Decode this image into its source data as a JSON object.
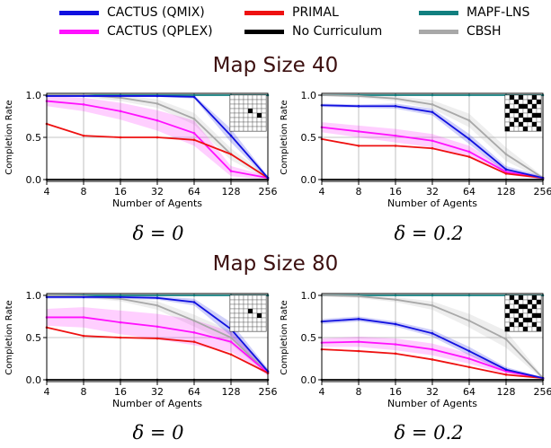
{
  "legend": [
    {
      "label": "CACTUS (QMIX)",
      "color": "#1010e0"
    },
    {
      "label": "PRIMAL",
      "color": "#ee1111"
    },
    {
      "label": "MAPF-LNS",
      "color": "#117f7f"
    },
    {
      "label": "CACTUS (QPLEX)",
      "color": "#ff10ff"
    },
    {
      "label": "No Curriculum",
      "color": "#000000"
    },
    {
      "label": "CBSH",
      "color": "#a8a8a8"
    }
  ],
  "sections": [
    {
      "title": "Map Size 40"
    },
    {
      "title": "Map Size 80"
    }
  ],
  "chart_data": [
    {
      "type": "line",
      "section": "Map Size 40",
      "caption": "δ = 0",
      "xlabel": "Number of Agents",
      "ylabel": "Completion Rate",
      "x": [
        4,
        8,
        16,
        32,
        64,
        128,
        256
      ],
      "x_scale": "log2",
      "xticks": [
        "4",
        "8",
        "16",
        "32",
        "64",
        "128",
        "256"
      ],
      "yticks": [
        "0.0",
        "0.5",
        "1.0"
      ],
      "ylim": [
        0,
        1
      ],
      "grid": true,
      "series": [
        {
          "name": "MAPF-LNS",
          "values": [
            1.0,
            1.0,
            1.0,
            1.0,
            1.0,
            1.0,
            1.0
          ]
        },
        {
          "name": "No Curriculum",
          "values": [
            0.0,
            0.0,
            0.0,
            0.0,
            0.0,
            0.0,
            0.0
          ]
        },
        {
          "name": "CBSH",
          "values": [
            1.0,
            1.0,
            0.97,
            0.9,
            0.72,
            0.3,
            0.02
          ],
          "band": [
            0.02,
            0.02,
            0.04,
            0.05,
            0.07,
            0.07,
            0.02
          ]
        },
        {
          "name": "CACTUS (QPLEX)",
          "values": [
            0.93,
            0.89,
            0.81,
            0.7,
            0.55,
            0.1,
            0.02
          ],
          "band": [
            0.06,
            0.08,
            0.1,
            0.12,
            0.15,
            0.06,
            0.02
          ]
        },
        {
          "name": "PRIMAL",
          "values": [
            0.66,
            0.52,
            0.5,
            0.5,
            0.47,
            0.3,
            0.02
          ]
        },
        {
          "name": "CACTUS (QMIX)",
          "values": [
            0.99,
            0.99,
            0.99,
            0.99,
            0.98,
            0.52,
            0.02
          ],
          "band": [
            0.01,
            0.01,
            0.01,
            0.01,
            0.02,
            0.08,
            0.02
          ]
        }
      ],
      "inset": {
        "rows": 8,
        "cols": 8,
        "blocked": [
          [
            3,
            4
          ],
          [
            4,
            6
          ]
        ]
      }
    },
    {
      "type": "line",
      "section": "Map Size 40",
      "caption": "δ = 0.2",
      "xlabel": "Number of Agents",
      "ylabel": "Completion Rate",
      "x": [
        4,
        8,
        16,
        32,
        64,
        128,
        256
      ],
      "x_scale": "log2",
      "xticks": [
        "4",
        "8",
        "16",
        "32",
        "64",
        "128",
        "256"
      ],
      "yticks": [
        "0.0",
        "0.5",
        "1.0"
      ],
      "ylim": [
        0,
        1
      ],
      "grid": true,
      "series": [
        {
          "name": "MAPF-LNS",
          "values": [
            1.0,
            1.0,
            1.0,
            1.0,
            1.0,
            1.0,
            1.0
          ]
        },
        {
          "name": "No Curriculum",
          "values": [
            0.0,
            0.0,
            0.0,
            0.0,
            0.0,
            0.0,
            0.0
          ]
        },
        {
          "name": "CBSH",
          "values": [
            1.0,
            0.99,
            0.96,
            0.89,
            0.7,
            0.3,
            0.02
          ],
          "band": [
            0.01,
            0.02,
            0.03,
            0.05,
            0.08,
            0.08,
            0.02
          ]
        },
        {
          "name": "CACTUS (QPLEX)",
          "values": [
            0.62,
            0.57,
            0.52,
            0.46,
            0.33,
            0.09,
            0.02
          ],
          "band": [
            0.06,
            0.07,
            0.08,
            0.08,
            0.07,
            0.03,
            0.02
          ]
        },
        {
          "name": "PRIMAL",
          "values": [
            0.48,
            0.4,
            0.4,
            0.37,
            0.27,
            0.07,
            0.02
          ]
        },
        {
          "name": "CACTUS (QMIX)",
          "values": [
            0.88,
            0.87,
            0.87,
            0.8,
            0.48,
            0.12,
            0.02
          ],
          "band": [
            0.02,
            0.02,
            0.03,
            0.04,
            0.06,
            0.04,
            0.02
          ]
        }
      ],
      "inset": {
        "rows": 8,
        "cols": 8,
        "blocked": [
          [
            0,
            1
          ],
          [
            0,
            3
          ],
          [
            0,
            6
          ],
          [
            1,
            2
          ],
          [
            1,
            5
          ],
          [
            1,
            7
          ],
          [
            2,
            0
          ],
          [
            2,
            3
          ],
          [
            2,
            4
          ],
          [
            2,
            6
          ],
          [
            3,
            1
          ],
          [
            3,
            2
          ],
          [
            3,
            5
          ],
          [
            4,
            0
          ],
          [
            4,
            3
          ],
          [
            4,
            6
          ],
          [
            4,
            7
          ],
          [
            5,
            2
          ],
          [
            5,
            4
          ],
          [
            5,
            5
          ],
          [
            6,
            1
          ],
          [
            6,
            3
          ],
          [
            6,
            6
          ],
          [
            7,
            0
          ],
          [
            7,
            4
          ],
          [
            7,
            7
          ]
        ]
      }
    },
    {
      "type": "line",
      "section": "Map Size 80",
      "caption": "δ = 0",
      "xlabel": "Number of Agents",
      "ylabel": "Completion Rate",
      "x": [
        4,
        8,
        16,
        32,
        64,
        128,
        256
      ],
      "x_scale": "log2",
      "xticks": [
        "4",
        "8",
        "16",
        "32",
        "64",
        "128",
        "256"
      ],
      "yticks": [
        "0.0",
        "0.5",
        "1.0"
      ],
      "ylim": [
        0,
        1
      ],
      "grid": true,
      "series": [
        {
          "name": "MAPF-LNS",
          "values": [
            1.0,
            1.0,
            1.0,
            1.0,
            1.0,
            1.0,
            1.0
          ]
        },
        {
          "name": "No Curriculum",
          "values": [
            0.0,
            0.0,
            0.0,
            0.0,
            0.0,
            0.0,
            0.0
          ]
        },
        {
          "name": "CBSH",
          "values": [
            1.0,
            0.99,
            0.96,
            0.88,
            0.7,
            0.5,
            0.08
          ],
          "band": [
            0.01,
            0.02,
            0.03,
            0.05,
            0.07,
            0.08,
            0.03
          ]
        },
        {
          "name": "CACTUS (QPLEX)",
          "values": [
            0.74,
            0.74,
            0.68,
            0.63,
            0.56,
            0.45,
            0.08
          ],
          "band": [
            0.1,
            0.12,
            0.14,
            0.15,
            0.15,
            0.12,
            0.03
          ]
        },
        {
          "name": "PRIMAL",
          "values": [
            0.62,
            0.52,
            0.5,
            0.49,
            0.45,
            0.3,
            0.08
          ]
        },
        {
          "name": "CACTUS (QMIX)",
          "values": [
            0.98,
            0.98,
            0.98,
            0.97,
            0.92,
            0.6,
            0.1
          ],
          "band": [
            0.02,
            0.02,
            0.02,
            0.02,
            0.04,
            0.08,
            0.03
          ]
        }
      ],
      "inset": {
        "rows": 8,
        "cols": 8,
        "blocked": [
          [
            3,
            4
          ],
          [
            4,
            6
          ]
        ]
      }
    },
    {
      "type": "line",
      "section": "Map Size 80",
      "caption": "δ = 0.2",
      "xlabel": "Number of Agents",
      "ylabel": "Completion Rate",
      "x": [
        4,
        8,
        16,
        32,
        64,
        128,
        256
      ],
      "x_scale": "log2",
      "xticks": [
        "4",
        "8",
        "16",
        "32",
        "64",
        "128",
        "256"
      ],
      "yticks": [
        "0.0",
        "0.5",
        "1.0"
      ],
      "ylim": [
        0,
        1
      ],
      "grid": true,
      "series": [
        {
          "name": "MAPF-LNS",
          "values": [
            1.0,
            1.0,
            1.0,
            1.0,
            1.0,
            1.0,
            1.0
          ]
        },
        {
          "name": "No Curriculum",
          "values": [
            0.0,
            0.0,
            0.0,
            0.0,
            0.0,
            0.0,
            0.0
          ]
        },
        {
          "name": "CBSH",
          "values": [
            1.0,
            0.99,
            0.95,
            0.88,
            0.7,
            0.48,
            0.02
          ],
          "band": [
            0.01,
            0.02,
            0.03,
            0.05,
            0.08,
            0.1,
            0.02
          ]
        },
        {
          "name": "CACTUS (QPLEX)",
          "values": [
            0.44,
            0.45,
            0.42,
            0.36,
            0.25,
            0.1,
            0.02
          ],
          "band": [
            0.05,
            0.06,
            0.07,
            0.07,
            0.06,
            0.03,
            0.01
          ]
        },
        {
          "name": "PRIMAL",
          "values": [
            0.36,
            0.34,
            0.31,
            0.24,
            0.15,
            0.06,
            0.02
          ]
        },
        {
          "name": "CACTUS (QMIX)",
          "values": [
            0.69,
            0.72,
            0.66,
            0.55,
            0.34,
            0.12,
            0.02
          ],
          "band": [
            0.03,
            0.03,
            0.03,
            0.04,
            0.05,
            0.03,
            0.01
          ]
        }
      ],
      "inset": {
        "rows": 8,
        "cols": 8,
        "blocked": [
          [
            0,
            1
          ],
          [
            0,
            3
          ],
          [
            0,
            6
          ],
          [
            1,
            2
          ],
          [
            1,
            5
          ],
          [
            1,
            7
          ],
          [
            2,
            0
          ],
          [
            2,
            3
          ],
          [
            2,
            4
          ],
          [
            2,
            6
          ],
          [
            3,
            1
          ],
          [
            3,
            2
          ],
          [
            3,
            5
          ],
          [
            4,
            0
          ],
          [
            4,
            3
          ],
          [
            4,
            6
          ],
          [
            4,
            7
          ],
          [
            5,
            2
          ],
          [
            5,
            4
          ],
          [
            5,
            5
          ],
          [
            6,
            1
          ],
          [
            6,
            3
          ],
          [
            6,
            6
          ],
          [
            7,
            0
          ],
          [
            7,
            4
          ],
          [
            7,
            7
          ]
        ]
      }
    }
  ]
}
